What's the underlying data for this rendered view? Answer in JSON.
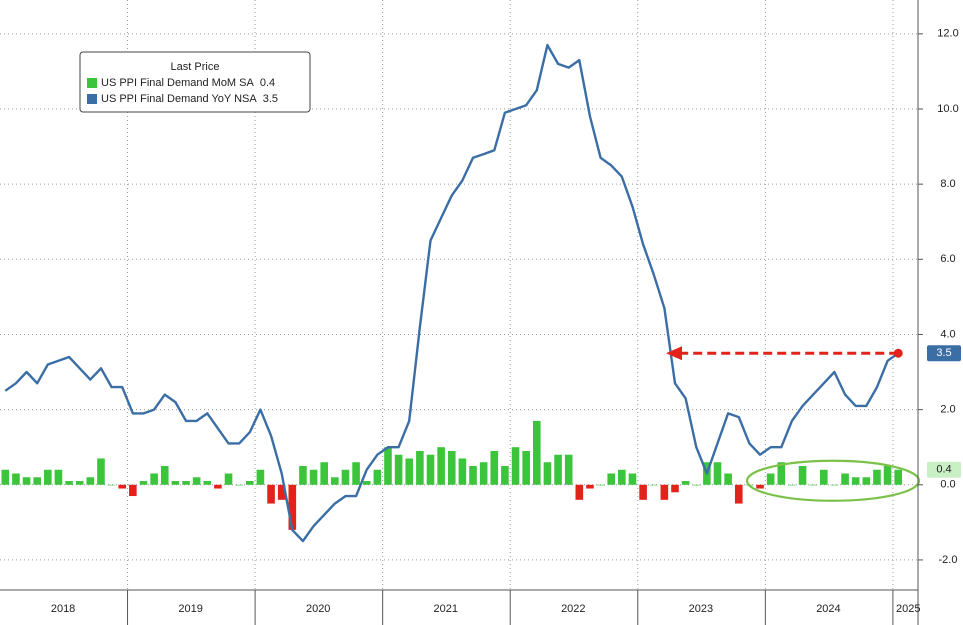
{
  "chart_data": {
    "type": "bar-line",
    "legend_title": "Last Price",
    "categories": [
      null,
      null,
      null,
      null,
      null,
      null,
      "2018",
      null,
      null,
      null,
      null,
      null,
      null,
      null,
      null,
      null,
      null,
      null,
      "2019",
      null,
      null,
      null,
      null,
      null,
      null,
      null,
      null,
      null,
      null,
      null,
      "2020",
      null,
      null,
      null,
      null,
      null,
      null,
      null,
      null,
      null,
      null,
      null,
      "2021",
      null,
      null,
      null,
      null,
      null,
      null,
      null,
      null,
      null,
      null,
      null,
      "2022",
      null,
      null,
      null,
      null,
      null,
      null,
      null,
      null,
      null,
      null,
      null,
      "2023",
      null,
      null,
      null,
      null,
      null,
      null,
      null,
      null,
      null,
      null,
      null,
      "2024",
      null,
      null,
      null,
      null,
      null,
      "2025"
    ],
    "series": [
      {
        "name": "US PPI Final Demand MoM SA",
        "color": "#3cc43c",
        "negative_color": "#e3221c",
        "kind": "bar",
        "values": [
          0.4,
          0.3,
          0.2,
          0.2,
          0.4,
          0.4,
          0.1,
          0.1,
          0.2,
          0.7,
          0.0,
          -0.1,
          -0.3,
          0.1,
          0.3,
          0.5,
          0.1,
          0.1,
          0.2,
          0.1,
          -0.1,
          0.3,
          0.0,
          0.1,
          0.4,
          -0.5,
          -0.4,
          -1.2,
          0.5,
          0.4,
          0.6,
          0.2,
          0.4,
          0.6,
          0.1,
          0.4,
          1.0,
          0.8,
          0.7,
          0.9,
          0.8,
          1.0,
          0.9,
          0.7,
          0.5,
          0.6,
          0.9,
          0.5,
          1.0,
          0.9,
          1.7,
          0.6,
          0.8,
          0.8,
          -0.4,
          -0.1,
          0.0,
          0.3,
          0.4,
          0.3,
          -0.4,
          0.0,
          -0.4,
          -0.2,
          0.1,
          0.0,
          0.6,
          0.6,
          0.3,
          -0.5,
          0.0,
          -0.1,
          0.3,
          0.6,
          0.0,
          0.5,
          0.0,
          0.4,
          0.0,
          0.3,
          0.2,
          0.2,
          0.4,
          0.5,
          0.4
        ]
      },
      {
        "name": "US PPI Final Demand YoY NSA",
        "color": "#3a6ea5",
        "kind": "line",
        "values": [
          2.5,
          2.7,
          3.0,
          2.7,
          3.2,
          3.3,
          3.4,
          3.1,
          2.8,
          3.1,
          2.6,
          2.6,
          1.9,
          1.9,
          2.0,
          2.4,
          2.2,
          1.7,
          1.7,
          1.9,
          1.5,
          1.1,
          1.1,
          1.4,
          2.0,
          1.3,
          0.3,
          -1.2,
          -1.5,
          -1.1,
          -0.8,
          -0.5,
          -0.3,
          -0.3,
          0.4,
          0.8,
          1.0,
          1.0,
          1.7,
          4.2,
          6.5,
          7.1,
          7.7,
          8.1,
          8.7,
          8.8,
          8.9,
          9.9,
          10.0,
          10.1,
          10.5,
          11.7,
          11.2,
          11.1,
          11.3,
          9.8,
          8.7,
          8.5,
          8.2,
          7.4,
          6.4,
          5.6,
          4.7,
          2.7,
          2.3,
          1.0,
          0.3,
          1.1,
          1.9,
          1.8,
          1.1,
          0.8,
          1.0,
          1.0,
          1.7,
          2.1,
          2.4,
          2.7,
          3.0,
          2.4,
          2.1,
          2.1,
          2.6,
          3.3,
          3.5
        ]
      }
    ],
    "ylim": [
      -2.8,
      12.9
    ],
    "yticks": [
      {
        "value": -2,
        "label": "-2.0"
      },
      {
        "value": 0,
        "label": "0.0"
      },
      {
        "value": 2,
        "label": "2.0"
      },
      {
        "value": 4,
        "label": "4.0"
      },
      {
        "value": 6,
        "label": "6.0"
      },
      {
        "value": 8,
        "label": "8.0"
      },
      {
        "value": 10,
        "label": "10.0"
      },
      {
        "value": 12,
        "label": "12.0"
      }
    ],
    "grid": true
  }
}
